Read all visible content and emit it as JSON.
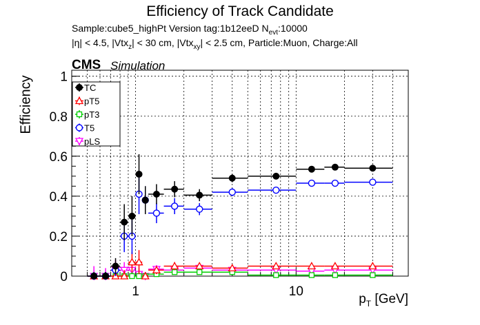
{
  "header": {
    "title": "Efficiency of Track Candidate",
    "sample_line": "Sample:cube5_highPt   Version tag:1b12eeD  N",
    "nevt_sub": "evt",
    "nevt_value": ":10000",
    "cuts_a": "|η| < 4.5, |Vtx",
    "cuts_z": "z",
    "cuts_b": "| < 30 cm, |Vtx",
    "cuts_xy": "xy",
    "cuts_c": "| < 2.5 cm, Particle:Muon, Charge:All",
    "cms": "CMS",
    "simulation": "Simulation"
  },
  "chart_data": {
    "type": "scatter",
    "title": "Efficiency of Track Candidate",
    "xlabel": "p",
    "xlabel_sub": "T",
    "xlabel_unit": " [GeV]",
    "ylabel": "Efficiency",
    "xscale": "log",
    "xlim": [
      0.4,
      50
    ],
    "ylim": [
      0,
      1.03
    ],
    "grid": true,
    "legend_position": "top-left",
    "x_tick_labels": [
      {
        "value": 1,
        "label": "1"
      },
      {
        "value": 10,
        "label": "10"
      }
    ],
    "y_tick_labels": [
      {
        "value": 0,
        "label": "0"
      },
      {
        "value": 0.2,
        "label": "0.2"
      },
      {
        "value": 0.4,
        "label": "0.4"
      },
      {
        "value": 0.6,
        "label": "0.6"
      },
      {
        "value": 0.8,
        "label": "0.8"
      },
      {
        "value": 1,
        "label": "1"
      }
    ],
    "series": [
      {
        "name": "TC",
        "color": "#000000",
        "marker": "circle-filled",
        "points": [
          {
            "x": 0.55,
            "xlo": 0.5,
            "xhi": 0.6,
            "y": 0.0,
            "err": 0.02
          },
          {
            "x": 0.65,
            "xlo": 0.6,
            "xhi": 0.7,
            "y": 0.0,
            "err": 0.02
          },
          {
            "x": 0.75,
            "xlo": 0.7,
            "xhi": 0.8,
            "y": 0.05,
            "err": 0.04
          },
          {
            "x": 0.85,
            "xlo": 0.8,
            "xhi": 0.9,
            "y": 0.27,
            "err": 0.09
          },
          {
            "x": 0.95,
            "xlo": 0.9,
            "xhi": 1.0,
            "y": 0.3,
            "err": 0.1
          },
          {
            "x": 1.05,
            "xlo": 1.0,
            "xhi": 1.1,
            "y": 0.51,
            "err": 0.1
          },
          {
            "x": 1.15,
            "xlo": 1.1,
            "xhi": 1.2,
            "y": 0.38,
            "err": 0.07
          },
          {
            "x": 1.35,
            "xlo": 1.2,
            "xhi": 1.5,
            "y": 0.41,
            "err": 0.05
          },
          {
            "x": 1.75,
            "xlo": 1.5,
            "xhi": 2.0,
            "y": 0.435,
            "err": 0.04
          },
          {
            "x": 2.5,
            "xlo": 2.0,
            "xhi": 3.0,
            "y": 0.405,
            "err": 0.03
          },
          {
            "x": 4.0,
            "xlo": 3.0,
            "xhi": 5.0,
            "y": 0.49,
            "err": 0.02
          },
          {
            "x": 7.5,
            "xlo": 5.0,
            "xhi": 10.0,
            "y": 0.5,
            "err": 0.012
          },
          {
            "x": 12.5,
            "xlo": 10.0,
            "xhi": 15.0,
            "y": 0.535,
            "err": 0.01
          },
          {
            "x": 17.5,
            "xlo": 15.0,
            "xhi": 20.0,
            "y": 0.545,
            "err": 0.01
          },
          {
            "x": 30.0,
            "xlo": 20.0,
            "xhi": 40.0,
            "y": 0.54,
            "err": 0.01
          }
        ]
      },
      {
        "name": "pT5",
        "color": "#ff0000",
        "marker": "triangle-open",
        "points": [
          {
            "x": 0.55,
            "xlo": 0.5,
            "xhi": 0.6,
            "y": 0.0,
            "err": 0.02
          },
          {
            "x": 0.65,
            "xlo": 0.6,
            "xhi": 0.7,
            "y": 0.0,
            "err": 0.02
          },
          {
            "x": 0.75,
            "xlo": 0.7,
            "xhi": 0.8,
            "y": 0.0,
            "err": 0.02
          },
          {
            "x": 0.85,
            "xlo": 0.8,
            "xhi": 0.9,
            "y": 0.0,
            "err": 0.03
          },
          {
            "x": 0.95,
            "xlo": 0.9,
            "xhi": 1.0,
            "y": 0.07,
            "err": 0.05
          },
          {
            "x": 1.05,
            "xlo": 1.0,
            "xhi": 1.1,
            "y": 0.07,
            "err": 0.06
          },
          {
            "x": 1.15,
            "xlo": 1.1,
            "xhi": 1.2,
            "y": 0.0,
            "err": 0.02
          },
          {
            "x": 1.35,
            "xlo": 1.2,
            "xhi": 1.5,
            "y": 0.03,
            "err": 0.02
          },
          {
            "x": 1.75,
            "xlo": 1.5,
            "xhi": 2.0,
            "y": 0.05,
            "err": 0.02
          },
          {
            "x": 2.5,
            "xlo": 2.0,
            "xhi": 3.0,
            "y": 0.05,
            "err": 0.015
          },
          {
            "x": 4.0,
            "xlo": 3.0,
            "xhi": 5.0,
            "y": 0.04,
            "err": 0.01
          },
          {
            "x": 7.5,
            "xlo": 5.0,
            "xhi": 10.0,
            "y": 0.05,
            "err": 0.008
          },
          {
            "x": 12.5,
            "xlo": 10.0,
            "xhi": 15.0,
            "y": 0.05,
            "err": 0.007
          },
          {
            "x": 17.5,
            "xlo": 15.0,
            "xhi": 20.0,
            "y": 0.05,
            "err": 0.006
          },
          {
            "x": 30.0,
            "xlo": 20.0,
            "xhi": 40.0,
            "y": 0.05,
            "err": 0.005
          }
        ]
      },
      {
        "name": "pT3",
        "color": "#00cc00",
        "marker": "square-open",
        "points": [
          {
            "x": 0.55,
            "xlo": 0.5,
            "xhi": 0.6,
            "y": 0.0,
            "err": 0.01
          },
          {
            "x": 0.65,
            "xlo": 0.6,
            "xhi": 0.7,
            "y": 0.0,
            "err": 0.01
          },
          {
            "x": 0.75,
            "xlo": 0.7,
            "xhi": 0.8,
            "y": 0.0,
            "err": 0.01
          },
          {
            "x": 0.85,
            "xlo": 0.8,
            "xhi": 0.9,
            "y": 0.0,
            "err": 0.02
          },
          {
            "x": 0.95,
            "xlo": 0.9,
            "xhi": 1.0,
            "y": 0.0,
            "err": 0.02
          },
          {
            "x": 1.05,
            "xlo": 1.0,
            "xhi": 1.1,
            "y": 0.0,
            "err": 0.02
          },
          {
            "x": 1.15,
            "xlo": 1.1,
            "xhi": 1.2,
            "y": 0.0,
            "err": 0.02
          },
          {
            "x": 1.35,
            "xlo": 1.2,
            "xhi": 1.5,
            "y": 0.01,
            "err": 0.01
          },
          {
            "x": 1.75,
            "xlo": 1.5,
            "xhi": 2.0,
            "y": 0.02,
            "err": 0.01
          },
          {
            "x": 2.5,
            "xlo": 2.0,
            "xhi": 3.0,
            "y": 0.02,
            "err": 0.01
          },
          {
            "x": 4.0,
            "xlo": 3.0,
            "xhi": 5.0,
            "y": 0.02,
            "err": 0.008
          },
          {
            "x": 7.5,
            "xlo": 5.0,
            "xhi": 10.0,
            "y": 0.005,
            "err": 0.004
          },
          {
            "x": 12.5,
            "xlo": 10.0,
            "xhi": 15.0,
            "y": 0.005,
            "err": 0.003
          },
          {
            "x": 17.5,
            "xlo": 15.0,
            "xhi": 20.0,
            "y": 0.005,
            "err": 0.003
          },
          {
            "x": 30.0,
            "xlo": 20.0,
            "xhi": 40.0,
            "y": 0.005,
            "err": 0.003
          }
        ]
      },
      {
        "name": "T5",
        "color": "#0000ff",
        "marker": "circle-open",
        "points": [
          {
            "x": 0.55,
            "xlo": 0.5,
            "xhi": 0.6,
            "y": 0.0,
            "err": 0.02
          },
          {
            "x": 0.65,
            "xlo": 0.6,
            "xhi": 0.7,
            "y": 0.0,
            "err": 0.02
          },
          {
            "x": 0.75,
            "xlo": 0.7,
            "xhi": 0.8,
            "y": 0.03,
            "err": 0.03
          },
          {
            "x": 0.85,
            "xlo": 0.8,
            "xhi": 0.9,
            "y": 0.2,
            "err": 0.08
          },
          {
            "x": 0.95,
            "xlo": 0.9,
            "xhi": 1.0,
            "y": 0.2,
            "err": 0.09
          },
          {
            "x": 1.05,
            "xlo": 1.0,
            "xhi": 1.1,
            "y": 0.41,
            "err": 0.1
          },
          {
            "x": 1.15,
            "xlo": 1.1,
            "xhi": 1.2,
            "y": 0.38,
            "err": 0.07
          },
          {
            "x": 1.35,
            "xlo": 1.2,
            "xhi": 1.5,
            "y": 0.315,
            "err": 0.05
          },
          {
            "x": 1.75,
            "xlo": 1.5,
            "xhi": 2.0,
            "y": 0.35,
            "err": 0.04
          },
          {
            "x": 2.5,
            "xlo": 2.0,
            "xhi": 3.0,
            "y": 0.335,
            "err": 0.03
          },
          {
            "x": 4.0,
            "xlo": 3.0,
            "xhi": 5.0,
            "y": 0.42,
            "err": 0.02
          },
          {
            "x": 7.5,
            "xlo": 5.0,
            "xhi": 10.0,
            "y": 0.43,
            "err": 0.012
          },
          {
            "x": 12.5,
            "xlo": 10.0,
            "xhi": 15.0,
            "y": 0.465,
            "err": 0.01
          },
          {
            "x": 17.5,
            "xlo": 15.0,
            "xhi": 20.0,
            "y": 0.465,
            "err": 0.01
          },
          {
            "x": 30.0,
            "xlo": 20.0,
            "xhi": 40.0,
            "y": 0.47,
            "err": 0.01
          }
        ]
      },
      {
        "name": "pLS",
        "color": "#ff00ff",
        "marker": "triangle-down-open",
        "points": [
          {
            "x": 0.55,
            "xlo": 0.5,
            "xhi": 0.6,
            "y": 0.0,
            "err": 0.05
          },
          {
            "x": 0.65,
            "xlo": 0.6,
            "xhi": 0.7,
            "y": 0.0,
            "err": 0.04
          },
          {
            "x": 0.75,
            "xlo": 0.7,
            "xhi": 0.8,
            "y": 0.03,
            "err": 0.05
          },
          {
            "x": 0.85,
            "xlo": 0.8,
            "xhi": 0.9,
            "y": 0.03,
            "err": 0.04
          },
          {
            "x": 0.95,
            "xlo": 0.9,
            "xhi": 1.0,
            "y": 0.03,
            "err": 0.04
          },
          {
            "x": 1.05,
            "xlo": 1.0,
            "xhi": 1.1,
            "y": 0.01,
            "err": 0.03
          },
          {
            "x": 1.15,
            "xlo": 1.1,
            "xhi": 1.2,
            "y": 0.0,
            "err": 0.02
          },
          {
            "x": 1.35,
            "xlo": 1.2,
            "xhi": 1.5,
            "y": 0.035,
            "err": 0.02
          },
          {
            "x": 1.75,
            "xlo": 1.5,
            "xhi": 2.0,
            "y": 0.03,
            "err": 0.015
          },
          {
            "x": 2.5,
            "xlo": 2.0,
            "xhi": 3.0,
            "y": 0.04,
            "err": 0.012
          },
          {
            "x": 4.0,
            "xlo": 3.0,
            "xhi": 5.0,
            "y": 0.03,
            "err": 0.008
          },
          {
            "x": 7.5,
            "xlo": 5.0,
            "xhi": 10.0,
            "y": 0.03,
            "err": 0.006
          },
          {
            "x": 12.5,
            "xlo": 10.0,
            "xhi": 15.0,
            "y": 0.025,
            "err": 0.005
          },
          {
            "x": 17.5,
            "xlo": 15.0,
            "xhi": 20.0,
            "y": 0.03,
            "err": 0.005
          },
          {
            "x": 30.0,
            "xlo": 20.0,
            "xhi": 40.0,
            "y": 0.03,
            "err": 0.004
          }
        ]
      }
    ]
  }
}
